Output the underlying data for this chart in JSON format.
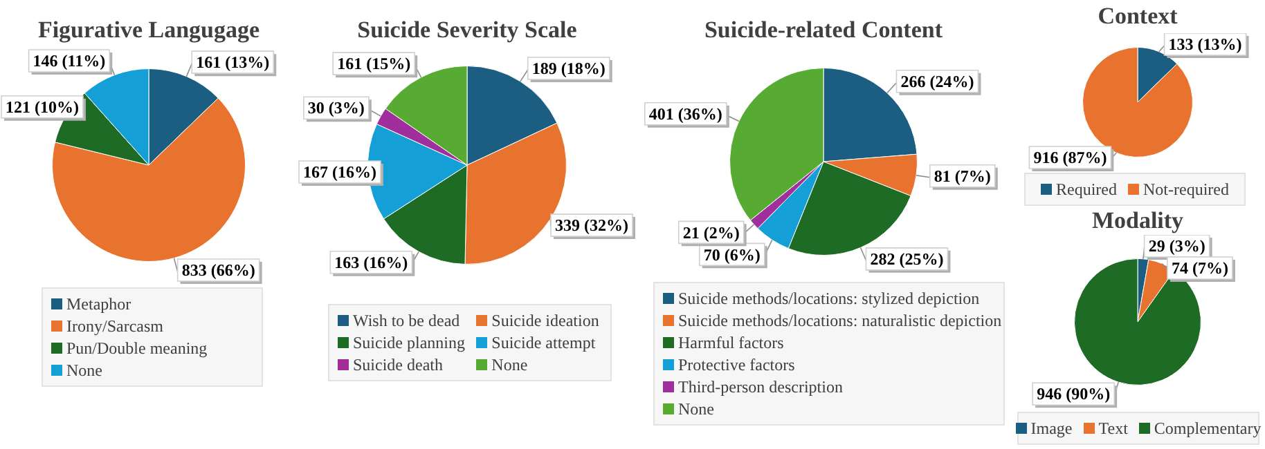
{
  "chart_data": [
    {
      "type": "pie",
      "title": "Figurative Langugage",
      "legend": "bottom",
      "categories": [
        "Metaphor",
        "Irony/Sarcasm",
        "Pun/Double meaning",
        "None"
      ],
      "values": [
        161,
        833,
        121,
        146
      ],
      "colors": [
        "#1b5e82",
        "#e8732f",
        "#1e6b26",
        "#14a0d6"
      ],
      "value_labels": [
        "161 (13%)",
        "833 (66%)",
        "121 (10%)",
        "146 (11%)"
      ]
    },
    {
      "type": "pie",
      "title": "Suicide Severity Scale",
      "legend": "bottom",
      "categories": [
        "Wish to be dead",
        "Suicide ideation",
        "Suicide planning",
        "Suicide attempt",
        "Suicide death",
        "None"
      ],
      "values": [
        189,
        339,
        163,
        167,
        30,
        161
      ],
      "colors": [
        "#1b5e82",
        "#e8732f",
        "#1e6b26",
        "#14a0d6",
        "#a02e9c",
        "#57ab33"
      ],
      "value_labels": [
        "189 (18%)",
        "339 (32%)",
        "163 (16%)",
        "167 (16%)",
        "30 (3%)",
        "161 (15%)"
      ]
    },
    {
      "type": "pie",
      "title": "Suicide-related Content",
      "legend": "bottom",
      "categories": [
        "Suicide methods/locations: stylized depiction",
        "Suicide methods/locations: naturalistic depiction",
        "Harmful factors",
        "Protective factors",
        "Third-person description",
        "None"
      ],
      "values": [
        266,
        81,
        282,
        70,
        21,
        401
      ],
      "colors": [
        "#1b5e82",
        "#e8732f",
        "#1e6b26",
        "#14a0d6",
        "#a02e9c",
        "#57ab33"
      ],
      "value_labels": [
        "266 (24%)",
        "81 (7%)",
        "282 (25%)",
        "70 (6%)",
        "21 (2%)",
        "401 (36%)"
      ]
    },
    {
      "type": "pie",
      "title": "Context",
      "legend": "bottom",
      "categories": [
        "Required",
        "Not-required"
      ],
      "values": [
        133,
        916
      ],
      "colors": [
        "#1b5e82",
        "#e8732f"
      ],
      "value_labels": [
        "133 (13%)",
        "916 (87%)"
      ]
    },
    {
      "type": "pie",
      "title": "Modality",
      "legend": "bottom",
      "categories": [
        "Image",
        "Text",
        "Complementary"
      ],
      "values": [
        29,
        74,
        946
      ],
      "colors": [
        "#1b5e82",
        "#e8732f",
        "#1e6b26"
      ],
      "value_labels": [
        "29 (3%)",
        "74 (7%)",
        "946 (90%)"
      ]
    }
  ]
}
